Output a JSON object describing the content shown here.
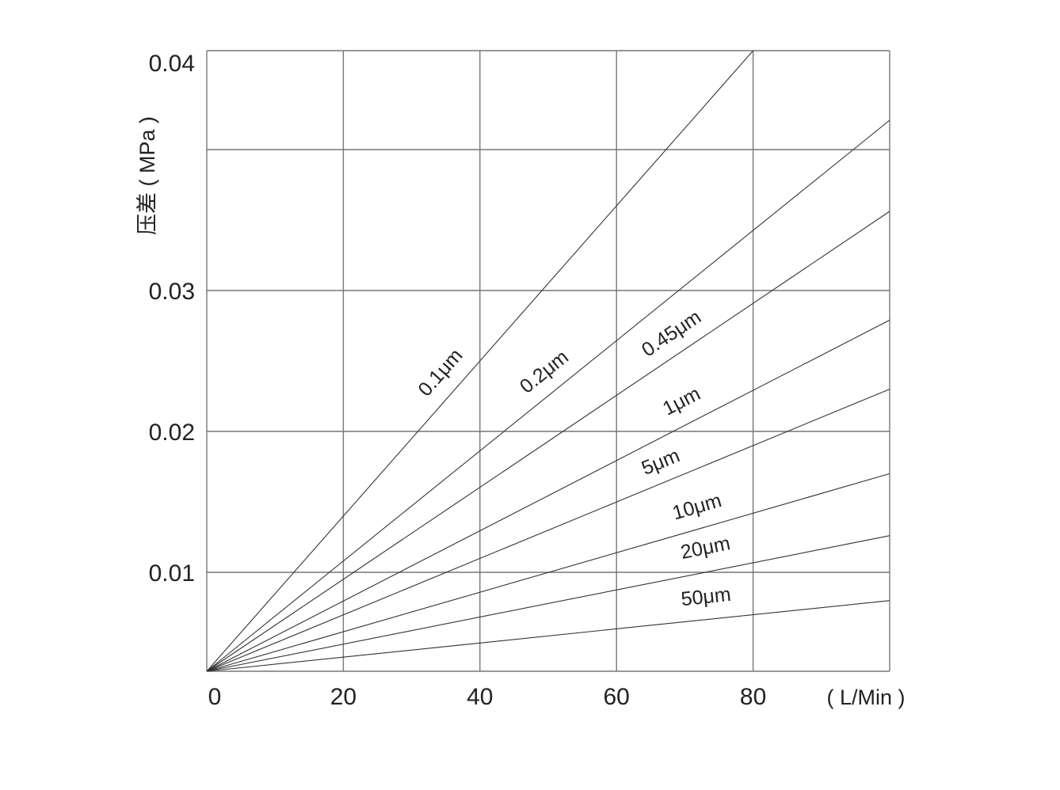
{
  "chart_data": {
    "type": "line",
    "title": "",
    "xlabel": "( L/Min )",
    "ylabel": "压差 ( MPa )",
    "xlim": [
      0,
      100
    ],
    "ylim": [
      0.003,
      0.04
    ],
    "x_ticks": [
      "0",
      "20",
      "40",
      "60",
      "80"
    ],
    "y_ticks": [
      "0.01",
      "0.02",
      "0.03",
      "0.04"
    ],
    "grid": true,
    "legend": "inline labels on lines",
    "line_color": "#333333",
    "grid_color": "#777777",
    "series": [
      {
        "name": "0.1μm",
        "x": [
          0,
          80
        ],
        "y": [
          0.003,
          0.04
        ]
      },
      {
        "name": "0.2μm",
        "x": [
          0,
          100
        ],
        "y": [
          0.003,
          0.0371
        ]
      },
      {
        "name": "0.45μm",
        "x": [
          0,
          100
        ],
        "y": [
          0.003,
          0.0333
        ]
      },
      {
        "name": "1μm",
        "x": [
          0,
          100
        ],
        "y": [
          0.003,
          0.0279
        ]
      },
      {
        "name": "5μm",
        "x": [
          0,
          100
        ],
        "y": [
          0.003,
          0.023
        ]
      },
      {
        "name": "10μm",
        "x": [
          0,
          100
        ],
        "y": [
          0.003,
          0.017
        ]
      },
      {
        "name": "20μm",
        "x": [
          0,
          100
        ],
        "y": [
          0.003,
          0.0126
        ]
      },
      {
        "name": "50μm",
        "x": [
          0,
          100
        ],
        "y": [
          0.003,
          0.008
        ]
      }
    ]
  }
}
